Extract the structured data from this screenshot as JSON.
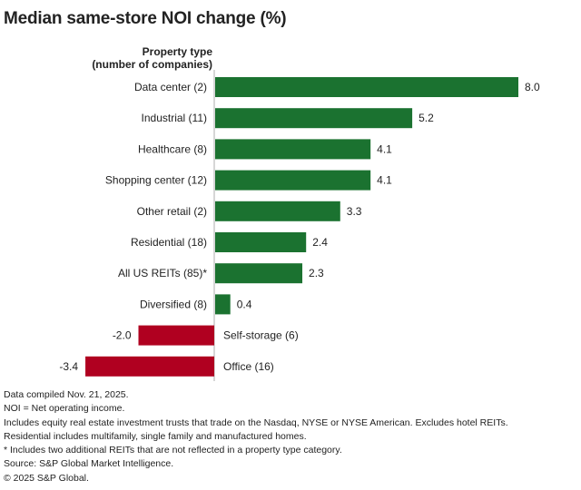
{
  "chart_data": {
    "type": "bar",
    "orientation": "horizontal",
    "title": "Median same-store NOI change (%)",
    "category_header": [
      "Property type",
      "(number of companies)"
    ],
    "categories": [
      "Data center (2)",
      "Industrial (11)",
      "Healthcare (8)",
      "Shopping center (12)",
      "Other retail (2)",
      "Residential (18)",
      "All US REITs (85)*",
      "Diversified (8)",
      "Self-storage (6)",
      "Office (16)"
    ],
    "values": [
      8.0,
      5.2,
      4.1,
      4.1,
      3.3,
      2.4,
      2.3,
      0.4,
      -2.0,
      -3.4
    ],
    "value_labels": [
      "8.0",
      "5.2",
      "4.1",
      "4.1",
      "3.3",
      "2.4",
      "2.3",
      "0.4",
      "-2.0",
      "-3.4"
    ],
    "xlabel": "",
    "ylabel": "",
    "xlim": [
      -3.4,
      8.0
    ],
    "grid": false,
    "colors": {
      "positive": "#1b7230",
      "negative": "#b00020",
      "axis": "#c8c8c8"
    }
  },
  "footnotes": [
    "Data compiled Nov. 21, 2025.",
    "NOI = Net operating income.",
    "Includes equity real estate investment trusts that trade on the Nasdaq, NYSE or NYSE American. Excludes hotel REITs.",
    "Residential includes multifamily, single family and manufactured homes.",
    "* Includes two additional REITs that are not reflected in a property type category.",
    "Source: S&P Global Market Intelligence.",
    "© 2025 S&P Global."
  ]
}
